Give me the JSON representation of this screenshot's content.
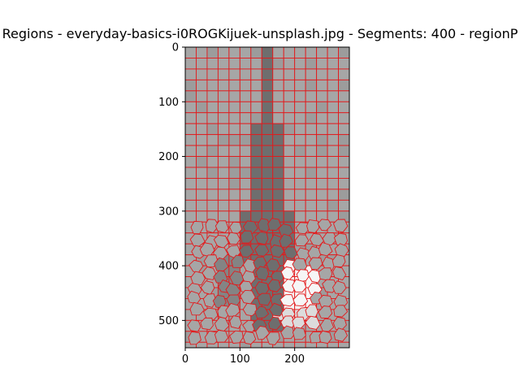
{
  "chart_data": {
    "type": "heatmap",
    "title": "Regions - everyday-basics-i0ROGKijuek-unsplash.jpg - Segments: 400 - regionP",
    "xlabel": "",
    "ylabel": "",
    "xlim": [
      0,
      300
    ],
    "ylim": [
      550,
      0
    ],
    "x_ticks": [
      0,
      100,
      200
    ],
    "y_ticks": [
      0,
      100,
      200,
      300,
      400,
      500
    ],
    "grid": false,
    "grid_cell_size": 20,
    "boundary_color": "#e31a1c",
    "gray_levels": {
      "dark": "#6e6e6e",
      "mid": "#848484",
      "light": "#a6a6a6",
      "pale": "#dcdcdc",
      "white": "#f6f6f6"
    },
    "regions": [
      {
        "name": "bottle-neck",
        "tone": "dark",
        "x": [
          140,
          160
        ],
        "y": [
          0,
          150
        ]
      },
      {
        "name": "bottle-shoulder",
        "tone": "dark",
        "x": [
          120,
          180
        ],
        "y": [
          150,
          300
        ]
      },
      {
        "name": "bottle-body",
        "tone": "dark",
        "x": [
          100,
          200
        ],
        "y": [
          300,
          400
        ]
      },
      {
        "name": "bottle-base",
        "tone": "dark",
        "x": [
          120,
          190
        ],
        "y": [
          400,
          520
        ]
      },
      {
        "name": "left-shadow",
        "tone": "mid",
        "x": [
          60,
          100
        ],
        "y": [
          380,
          480
        ]
      },
      {
        "name": "bright-highlight",
        "tone": "white",
        "x": [
          175,
          240
        ],
        "y": [
          400,
          480
        ]
      },
      {
        "name": "highlight-halo",
        "tone": "pale",
        "x": [
          170,
          250
        ],
        "y": [
          480,
          510
        ]
      }
    ]
  }
}
